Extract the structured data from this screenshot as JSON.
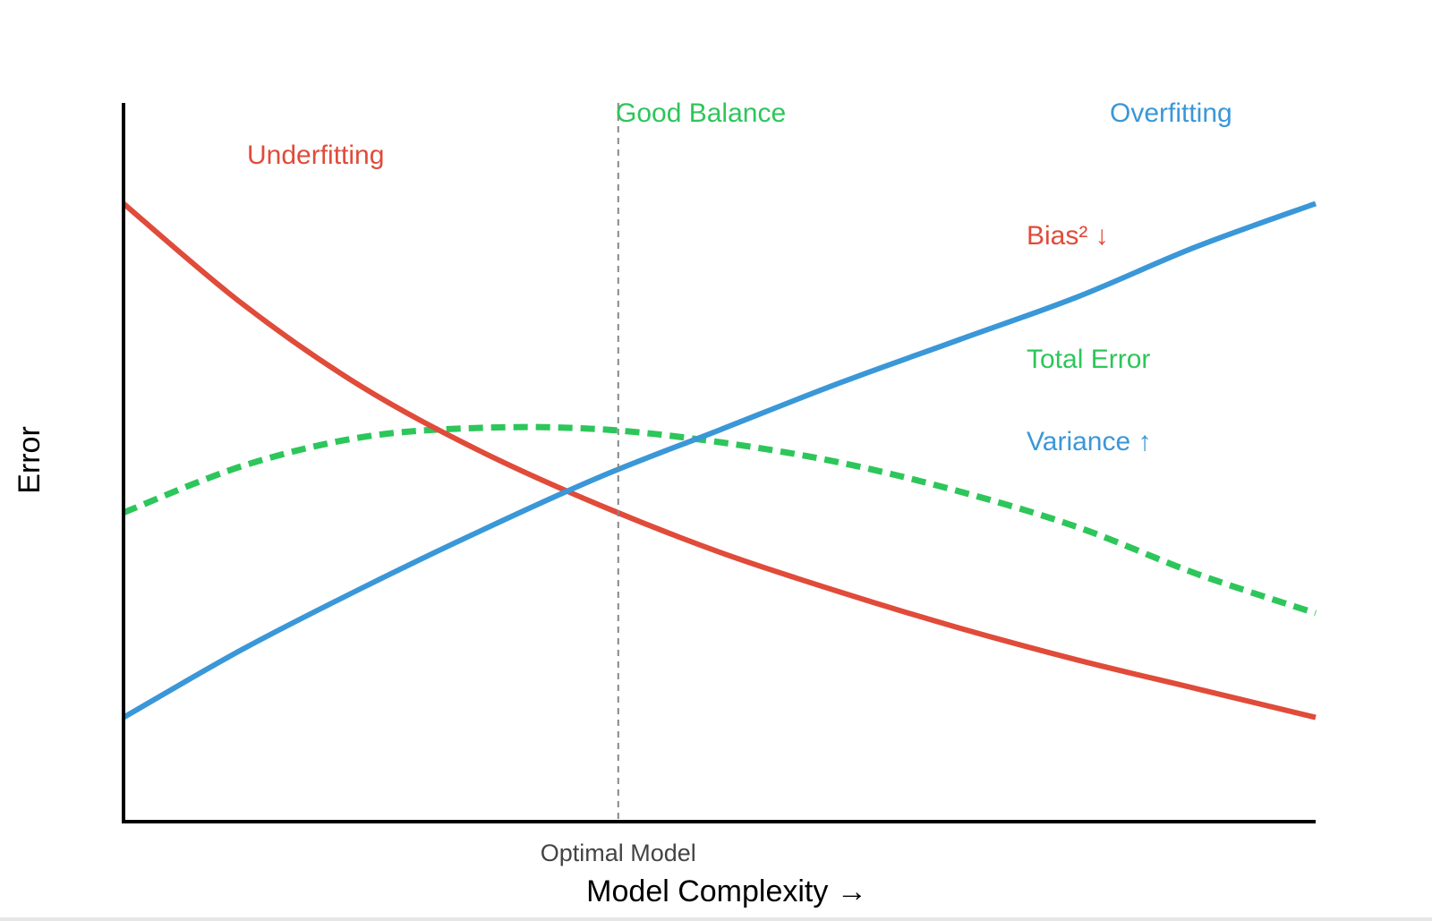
{
  "chart_data": {
    "type": "line",
    "xlabel": "Model Complexity →",
    "ylabel": "Error",
    "xlim": [
      0,
      1
    ],
    "ylim": [
      0,
      1
    ],
    "grid": false,
    "colors": {
      "bias": "#e04b3a",
      "variance": "#3a97d8",
      "total": "#2dc65a",
      "marker": "#888888",
      "axis": "#000000"
    },
    "series": [
      {
        "name": "Bias² ↓",
        "style": "solid",
        "x": [
          0,
          0.1,
          0.2,
          0.3,
          0.4,
          0.5,
          0.6,
          0.7,
          0.8,
          0.9,
          1.0
        ],
        "y": [
          0.86,
          0.72,
          0.605,
          0.515,
          0.44,
          0.375,
          0.32,
          0.27,
          0.225,
          0.185,
          0.145
        ]
      },
      {
        "name": "Variance ↑",
        "style": "solid",
        "x": [
          0,
          0.1,
          0.2,
          0.3,
          0.4,
          0.5,
          0.6,
          0.7,
          0.8,
          0.9,
          1.0
        ],
        "y": [
          0.145,
          0.24,
          0.325,
          0.405,
          0.48,
          0.545,
          0.61,
          0.67,
          0.73,
          0.8,
          0.86
        ]
      },
      {
        "name": "Total Error",
        "style": "dashed",
        "x": [
          0,
          0.1,
          0.2,
          0.3,
          0.4,
          0.5,
          0.6,
          0.7,
          0.8,
          0.9,
          1.0
        ],
        "y": [
          0.43,
          0.495,
          0.535,
          0.548,
          0.546,
          0.528,
          0.5,
          0.46,
          0.41,
          0.345,
          0.29
        ]
      }
    ],
    "marker": {
      "x": 0.415,
      "label": "Optimal Model"
    },
    "annotations": {
      "underfitting": "Underfitting",
      "good_balance": "Good Balance",
      "overfitting": "Overfitting"
    }
  }
}
